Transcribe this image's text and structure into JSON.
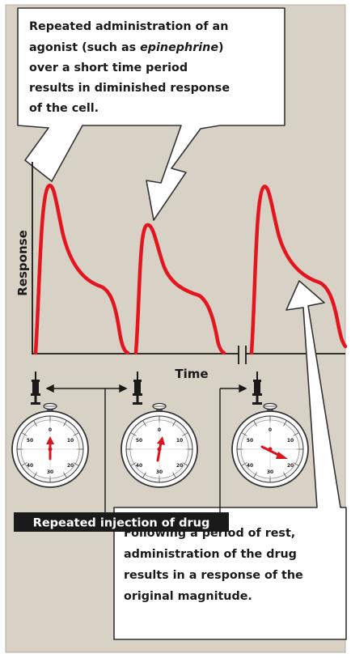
{
  "callouts": {
    "top_lines": [
      "Repeated administration of an",
      "agonist (such as ",
      "epinephrine",
      ")",
      "over a short time period",
      "results in diminished response",
      "of the cell."
    ],
    "bottom_lines": [
      "Following a period of rest,",
      "administration of the drug",
      "results in a response of the",
      "original magnitude."
    ]
  },
  "axes": {
    "y_label": "Response",
    "x_label": "Time"
  },
  "banner": {
    "label": "Repeated injection of drug"
  },
  "stopwatch_ticks": {
    "top": "0",
    "left": "50",
    "right": "10",
    "bottom_left": "40",
    "bottom": "30",
    "bottom_right": "20"
  },
  "colors": {
    "background": "#d8d1c6",
    "curve": "#e3161f",
    "hand": "#d9141d",
    "text": "#1a1a1a",
    "banner": "#1a1a1a",
    "banner_text": "#ffffff"
  },
  "icons": [
    "syringe-icon",
    "stopwatch-icon"
  ]
}
